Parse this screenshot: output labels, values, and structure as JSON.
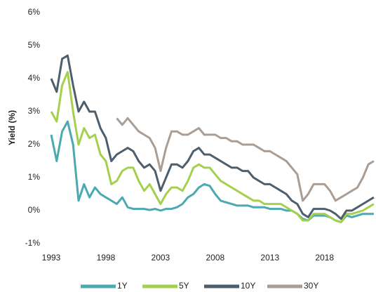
{
  "chart_data": {
    "type": "line",
    "y_label": "Yield (%)",
    "x": [
      1993,
      1993.5,
      1994,
      1994.5,
      1995,
      1995.5,
      1996,
      1996.5,
      1997,
      1997.5,
      1998,
      1998.5,
      1999,
      1999.5,
      2000,
      2000.5,
      2001,
      2001.5,
      2002,
      2002.5,
      2003,
      2003.5,
      2004,
      2004.5,
      2005,
      2005.5,
      2006,
      2006.5,
      2007,
      2007.5,
      2008,
      2008.5,
      2009,
      2009.5,
      2010,
      2010.5,
      2011,
      2011.5,
      2012,
      2012.5,
      2013,
      2013.5,
      2014,
      2014.5,
      2015,
      2015.5,
      2016,
      2016.5,
      2017,
      2017.5,
      2018,
      2018.5,
      2019,
      2019.5,
      2020,
      2020.5,
      2021,
      2021.5,
      2022,
      2022.5
    ],
    "series": [
      {
        "name": "1Y",
        "color": "#4aa9b1",
        "values": [
          2.3,
          1.5,
          2.4,
          2.7,
          2.0,
          0.3,
          0.8,
          0.4,
          0.7,
          0.5,
          0.4,
          0.3,
          0.2,
          0.4,
          0.1,
          0.05,
          0.05,
          0.05,
          0.02,
          0.05,
          0.0,
          0.05,
          0.05,
          0.1,
          0.2,
          0.4,
          0.5,
          0.7,
          0.8,
          0.75,
          0.5,
          0.3,
          0.25,
          0.2,
          0.15,
          0.15,
          0.15,
          0.1,
          0.1,
          0.1,
          0.05,
          0.05,
          0.05,
          0.0,
          0.0,
          -0.1,
          -0.25,
          -0.3,
          -0.15,
          -0.15,
          -0.15,
          -0.2,
          -0.3,
          -0.35,
          -0.15,
          -0.2,
          -0.15,
          -0.1,
          -0.1,
          -0.1
        ]
      },
      {
        "name": "5Y",
        "color": "#a4d04d",
        "values": [
          3.0,
          2.7,
          3.8,
          4.2,
          3.0,
          2.0,
          2.5,
          2.2,
          2.3,
          1.7,
          1.5,
          0.8,
          0.9,
          1.2,
          1.3,
          1.3,
          0.9,
          0.6,
          0.8,
          0.5,
          0.2,
          0.5,
          0.7,
          0.7,
          0.6,
          0.9,
          1.3,
          1.4,
          1.3,
          1.3,
          1.1,
          0.9,
          0.8,
          0.7,
          0.6,
          0.5,
          0.4,
          0.3,
          0.3,
          0.2,
          0.2,
          0.2,
          0.2,
          0.1,
          0.0,
          -0.1,
          -0.3,
          -0.3,
          -0.1,
          -0.1,
          -0.1,
          -0.2,
          -0.3,
          -0.35,
          -0.1,
          -0.1,
          -0.05,
          0.0,
          0.1,
          0.2
        ]
      },
      {
        "name": "10Y",
        "color": "#4d5e6d",
        "values": [
          4.0,
          3.6,
          4.6,
          4.7,
          3.8,
          3.0,
          3.3,
          3.0,
          3.0,
          2.5,
          2.2,
          1.5,
          1.7,
          1.8,
          1.9,
          1.8,
          1.5,
          1.3,
          1.4,
          1.2,
          0.6,
          1.0,
          1.4,
          1.4,
          1.3,
          1.5,
          1.8,
          1.9,
          1.7,
          1.7,
          1.6,
          1.5,
          1.4,
          1.3,
          1.3,
          1.2,
          1.2,
          1.0,
          0.9,
          0.8,
          0.8,
          0.7,
          0.6,
          0.5,
          0.3,
          0.2,
          -0.1,
          -0.2,
          0.05,
          0.05,
          0.05,
          0.0,
          -0.1,
          -0.25,
          0.0,
          0.0,
          0.1,
          0.2,
          0.3,
          0.4
        ]
      },
      {
        "name": "30Y",
        "color": "#a99d94",
        "values": [
          null,
          null,
          null,
          null,
          null,
          null,
          null,
          null,
          null,
          null,
          null,
          null,
          2.8,
          2.6,
          2.8,
          2.6,
          2.4,
          2.3,
          2.2,
          1.9,
          1.2,
          1.9,
          2.4,
          2.4,
          2.3,
          2.3,
          2.4,
          2.5,
          2.3,
          2.3,
          2.3,
          2.2,
          2.2,
          2.1,
          2.1,
          2.0,
          2.0,
          2.0,
          1.9,
          1.8,
          1.8,
          1.7,
          1.6,
          1.5,
          1.3,
          1.1,
          0.3,
          0.5,
          0.8,
          0.8,
          0.8,
          0.6,
          0.3,
          0.4,
          0.5,
          0.6,
          0.7,
          1.0,
          1.4,
          1.5
        ]
      }
    ],
    "xlim": [
      1993,
      2022.7
    ],
    "xticks": [
      1993,
      1998,
      2003,
      2008,
      2013,
      2018
    ],
    "ylim": [
      -1,
      6
    ],
    "yticks": [
      {
        "value": -1,
        "label": "-1%"
      },
      {
        "value": 0,
        "label": "0%"
      },
      {
        "value": 1,
        "label": "1%"
      },
      {
        "value": 2,
        "label": "2%"
      },
      {
        "value": 3,
        "label": "3%"
      },
      {
        "value": 4,
        "label": "4%"
      },
      {
        "value": 5,
        "label": "5%"
      },
      {
        "value": 6,
        "label": "6%"
      }
    ],
    "legend": "bottom",
    "grid": false
  }
}
